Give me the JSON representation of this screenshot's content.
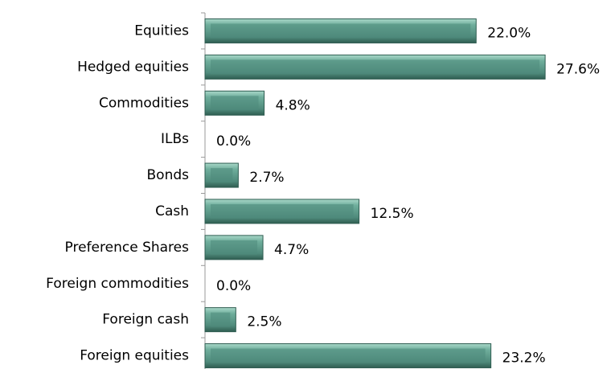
{
  "chart_data": {
    "type": "bar",
    "orientation": "horizontal",
    "categories": [
      "Equities",
      "Hedged equities",
      "Commodities",
      "ILBs",
      "Bonds",
      "Cash",
      "Preference Shares",
      "Foreign commodities",
      "Foreign cash",
      "Foreign equities"
    ],
    "values": [
      22.0,
      27.6,
      4.8,
      0.0,
      2.7,
      12.5,
      4.7,
      0.0,
      2.5,
      23.2
    ],
    "value_labels": [
      "22.0%",
      "27.6%",
      "4.8%",
      "0.0%",
      "2.7%",
      "12.5%",
      "4.7%",
      "0.0%",
      "2.5%",
      "23.2%"
    ],
    "color": "#4f8a7b"
  }
}
